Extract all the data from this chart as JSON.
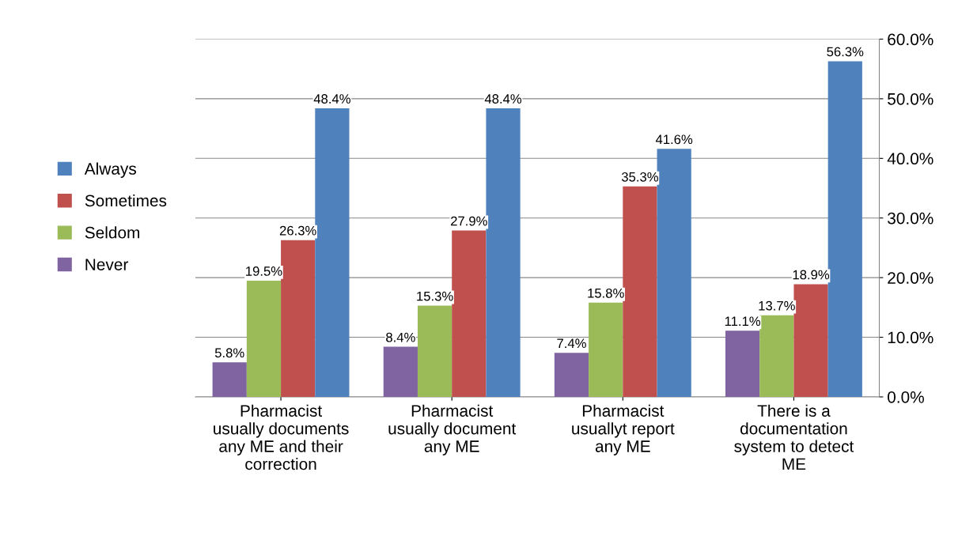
{
  "chart_data": {
    "type": "bar",
    "categories": [
      "Pharmacist usually documents any ME and their correction",
      "Pharmacist usually document any ME",
      "Pharmacist usuallyt report any ME",
      "There is a documentation system to detect ME"
    ],
    "series": [
      {
        "name": "Never",
        "color": "#8064a2",
        "values": [
          5.8,
          8.4,
          7.4,
          11.1
        ],
        "value_labels": [
          "5.8%",
          "8.4%",
          "7.4%",
          "11.1%"
        ]
      },
      {
        "name": "Seldom",
        "color": "#9bbb59",
        "values": [
          19.5,
          15.3,
          15.8,
          13.7
        ],
        "value_labels": [
          "19.5%",
          "15.3%",
          "15.8%",
          "13.7%"
        ]
      },
      {
        "name": "Sometimes",
        "color": "#c0504d",
        "values": [
          26.3,
          27.9,
          35.3,
          18.9
        ],
        "value_labels": [
          "26.3%",
          "27.9%",
          "35.3%",
          "18.9%"
        ]
      },
      {
        "name": "Always",
        "color": "#4f81bd",
        "values": [
          48.4,
          48.4,
          41.6,
          56.3
        ],
        "value_labels": [
          "48.4%",
          "48.4%",
          "41.6%",
          "56.3%"
        ]
      }
    ],
    "ylim": [
      0,
      60
    ],
    "yticks": [
      {
        "value": 0,
        "label": "0.0%"
      },
      {
        "value": 10,
        "label": "10.0%"
      },
      {
        "value": 20,
        "label": "20.0%"
      },
      {
        "value": 30,
        "label": "30.0%"
      },
      {
        "value": 40,
        "label": "40.0%"
      },
      {
        "value": 50,
        "label": "50.0%"
      },
      {
        "value": 60,
        "label": "60.0%"
      }
    ],
    "grid": "y",
    "legend": "left"
  }
}
